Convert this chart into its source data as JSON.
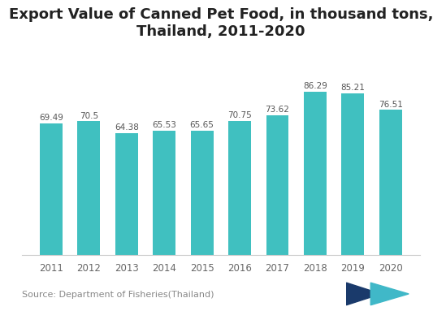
{
  "title": "Export Value of Canned Pet Food, in thousand tons,\nThailand, 2011-2020",
  "years": [
    2011,
    2012,
    2013,
    2014,
    2015,
    2016,
    2017,
    2018,
    2019,
    2020
  ],
  "values": [
    69.49,
    70.5,
    64.38,
    65.53,
    65.65,
    70.75,
    73.62,
    86.29,
    85.21,
    76.51
  ],
  "bar_color": "#40c0c0",
  "background_color": "#ffffff",
  "title_fontsize": 13,
  "label_fontsize": 7.5,
  "tick_fontsize": 8.5,
  "source_text": "Source: Department of Fisheries(Thailand)",
  "source_fontsize": 8,
  "source_color": "#888888",
  "ylim": [
    0,
    105
  ],
  "bar_width": 0.6
}
